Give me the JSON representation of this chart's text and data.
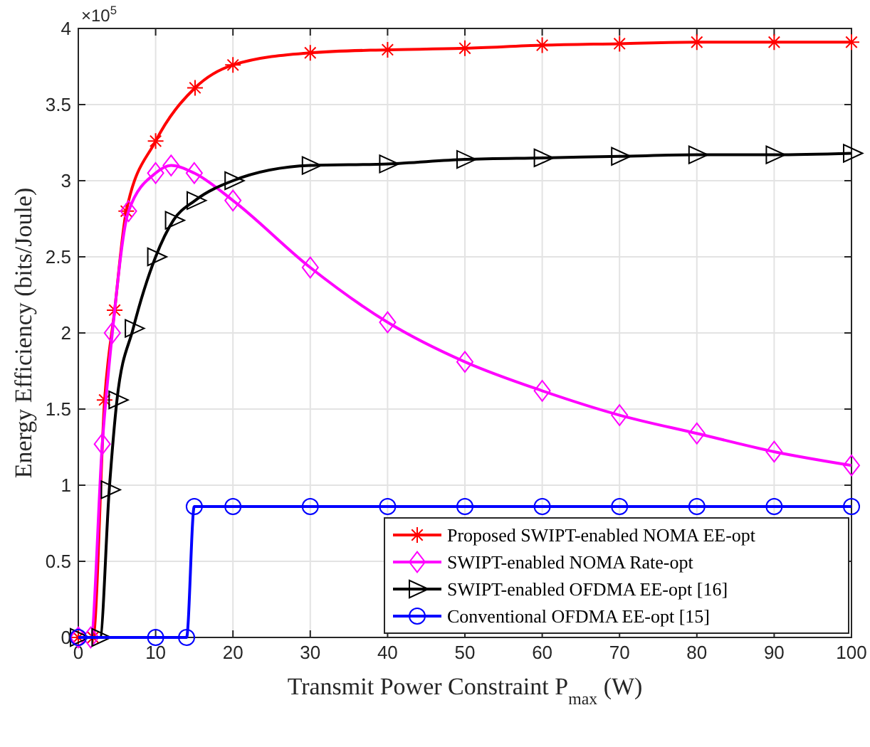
{
  "chart_data": {
    "type": "line",
    "xlabel": "Transmit Power Constraint P$_{max}$ (W)",
    "ylabel": "Energy Efficiency (bits/Joule)",
    "annotations": [
      "×10$^{5}$"
    ],
    "xlim": [
      0,
      100
    ],
    "xticks": [
      0,
      10,
      20,
      30,
      40,
      50,
      60,
      70,
      80,
      90,
      100
    ],
    "ylim": [
      0,
      4
    ],
    "yticks": [
      0,
      0.5,
      1,
      1.5,
      2,
      2.5,
      3,
      3.5,
      4
    ],
    "grid": true,
    "legend": "bottom right",
    "line_style": "solid",
    "series": [
      {
        "name": "Proposed SWIPT-enabled NOMA EE-opt",
        "color": "#ff0000",
        "marker": "cross",
        "x": [
          0,
          1.9,
          3.4,
          4.7,
          6.2,
          10,
          15.1,
          20,
          30,
          40,
          50,
          60,
          70,
          80,
          90,
          100
        ],
        "values": [
          0,
          0,
          1.56,
          2.15,
          2.8,
          3.26,
          3.61,
          3.76,
          3.84,
          3.86,
          3.87,
          3.89,
          3.9,
          3.91,
          3.91,
          3.91
        ]
      },
      {
        "name": "SWIPT-enabled NOMA Rate-opt",
        "color": "#ff00ff",
        "marker": "diamond",
        "x": [
          0,
          1.6,
          3.1,
          4.4,
          6.5,
          10,
          12,
          15,
          20,
          30,
          40,
          50,
          60,
          70,
          80,
          90,
          100
        ],
        "values": [
          0,
          0,
          1.27,
          2,
          2.8,
          3.05,
          3.1,
          3.05,
          2.87,
          2.43,
          2.07,
          1.81,
          1.62,
          1.46,
          1.34,
          1.22,
          1.13
        ]
      },
      {
        "name": "SWIPT-enabled OFDMA EE-opt [16]",
        "color": "#000000",
        "marker": "triangle",
        "x": [
          0,
          2.8,
          4,
          5,
          7.1,
          10,
          12.3,
          15.1,
          20,
          30,
          40,
          50,
          60,
          70,
          80,
          90,
          100
        ],
        "values": [
          0,
          0,
          0.97,
          1.56,
          2.03,
          2.5,
          2.74,
          2.87,
          3,
          3.1,
          3.11,
          3.14,
          3.15,
          3.16,
          3.17,
          3.17,
          3.18
        ]
      },
      {
        "name": "Conventional OFDMA EE-opt [15]",
        "color": "#0000ff",
        "marker": "circle",
        "x": [
          0,
          10,
          14,
          15,
          20,
          30,
          40,
          50,
          60,
          70,
          80,
          90,
          100
        ],
        "values": [
          0,
          0,
          0,
          0.86,
          0.86,
          0.86,
          0.86,
          0.86,
          0.86,
          0.86,
          0.86,
          0.86,
          0.86
        ]
      }
    ]
  }
}
